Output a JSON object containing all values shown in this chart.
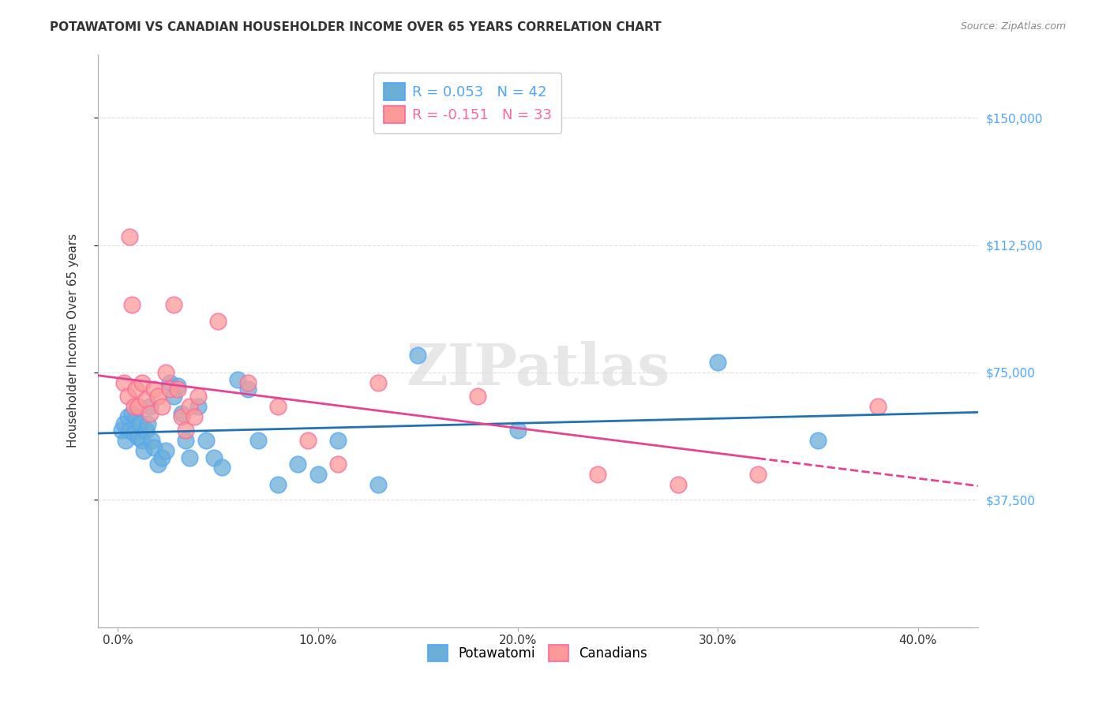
{
  "title": "POTAWATOMI VS CANADIAN HOUSEHOLDER INCOME OVER 65 YEARS CORRELATION CHART",
  "source": "Source: ZipAtlas.com",
  "ylabel": "Householder Income Over 65 years",
  "xlabel_ticks": [
    "0.0%",
    "10.0%",
    "20.0%",
    "30.0%",
    "40.0%"
  ],
  "xlabel_vals": [
    0.0,
    0.1,
    0.2,
    0.3,
    0.4
  ],
  "ytick_labels": [
    "$37,500",
    "$75,000",
    "$112,500",
    "$150,000"
  ],
  "ytick_vals": [
    37500,
    75000,
    112500,
    150000
  ],
  "ylim": [
    0,
    168750
  ],
  "xlim": [
    -0.01,
    0.43
  ],
  "background_color": "#ffffff",
  "grid_color": "#dddddd",
  "watermark": "ZIPatlas",
  "potawatomi_color": "#6baed6",
  "canadian_color": "#fb9a99",
  "potawatomi_R": 0.053,
  "potawatomi_N": 42,
  "canadian_R": -0.151,
  "canadian_N": 33,
  "blue_line_color": "#2171b5",
  "pink_line_color": "#e84393",
  "legend_blue_label": "R = 0.053   N = 42",
  "legend_pink_label": "R = -0.151   N = 33",
  "potawatomi_x": [
    0.002,
    0.003,
    0.004,
    0.005,
    0.006,
    0.007,
    0.008,
    0.009,
    0.01,
    0.011,
    0.012,
    0.013,
    0.014,
    0.015,
    0.016,
    0.017,
    0.018,
    0.02,
    0.022,
    0.024,
    0.026,
    0.028,
    0.03,
    0.032,
    0.034,
    0.036,
    0.04,
    0.044,
    0.048,
    0.052,
    0.06,
    0.065,
    0.07,
    0.08,
    0.09,
    0.1,
    0.11,
    0.13,
    0.15,
    0.2,
    0.3,
    0.35
  ],
  "potawatomi_y": [
    58000,
    60000,
    55000,
    62000,
    58000,
    63000,
    57000,
    62000,
    56000,
    60000,
    55000,
    52000,
    58000,
    60000,
    65000,
    55000,
    53000,
    48000,
    50000,
    52000,
    72000,
    68000,
    71000,
    63000,
    55000,
    50000,
    65000,
    55000,
    50000,
    47000,
    73000,
    70000,
    55000,
    42000,
    48000,
    45000,
    55000,
    42000,
    80000,
    58000,
    78000,
    55000
  ],
  "canadian_x": [
    0.003,
    0.005,
    0.006,
    0.007,
    0.008,
    0.009,
    0.01,
    0.012,
    0.014,
    0.016,
    0.018,
    0.02,
    0.022,
    0.024,
    0.026,
    0.028,
    0.03,
    0.032,
    0.034,
    0.036,
    0.038,
    0.04,
    0.05,
    0.065,
    0.08,
    0.095,
    0.11,
    0.13,
    0.18,
    0.24,
    0.28,
    0.32,
    0.38
  ],
  "canadian_y": [
    72000,
    68000,
    115000,
    95000,
    65000,
    70000,
    65000,
    72000,
    67000,
    63000,
    70000,
    68000,
    65000,
    75000,
    70000,
    95000,
    70000,
    62000,
    58000,
    65000,
    62000,
    68000,
    90000,
    72000,
    65000,
    55000,
    48000,
    72000,
    68000,
    45000,
    42000,
    45000,
    65000
  ]
}
